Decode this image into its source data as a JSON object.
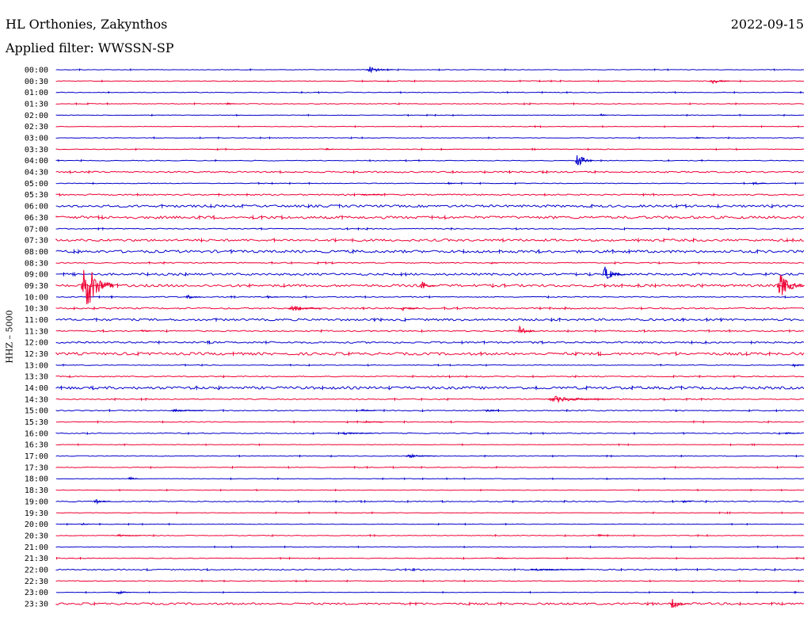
{
  "header": {
    "station": "HL Orthonies, Zakynthos",
    "date": "2022-09-15",
    "filter_prefix": "Applied filter: ",
    "filter": "WWSSN-SP"
  },
  "channel_label": "HHZ – 5000",
  "chart_data": {
    "type": "line",
    "title": "HL Orthonies, Zakynthos",
    "subtitle": "Applied filter: WWSSN-SP",
    "ylabel": "HHZ – 5000",
    "x_range_minutes": [
      0,
      30
    ],
    "rows": [
      "00:00",
      "00:30",
      "01:00",
      "01:30",
      "02:00",
      "02:30",
      "03:00",
      "03:30",
      "04:00",
      "04:30",
      "05:00",
      "05:30",
      "06:00",
      "06:30",
      "07:00",
      "07:30",
      "08:00",
      "08:30",
      "09:00",
      "09:30",
      "10:00",
      "10:30",
      "11:00",
      "11:30",
      "12:00",
      "12:30",
      "13:00",
      "13:30",
      "14:00",
      "14:30",
      "15:00",
      "15:30",
      "16:00",
      "16:30",
      "17:00",
      "17:30",
      "18:00",
      "18:30",
      "19:00",
      "19:30",
      "20:00",
      "20:30",
      "21:00",
      "21:30",
      "22:00",
      "22:30",
      "23:00",
      "23:30"
    ],
    "row_colors": [
      "#0000cc",
      "#ee0033"
    ],
    "noise_level": [
      0.3,
      0.4,
      0.4,
      0.4,
      0.3,
      0.3,
      0.3,
      0.4,
      0.4,
      0.9,
      0.4,
      0.8,
      1.4,
      1.6,
      0.6,
      1.4,
      1.6,
      0.6,
      1.3,
      1.5,
      0.6,
      0.9,
      1.3,
      0.8,
      1.1,
      1.6,
      0.4,
      0.6,
      1.6,
      0.6,
      0.6,
      0.5,
      0.5,
      0.3,
      0.4,
      0.4,
      0.3,
      0.3,
      0.6,
      0.3,
      0.3,
      0.4,
      0.3,
      0.4,
      0.7,
      0.4,
      0.3,
      1.2
    ],
    "events": [
      {
        "row": "00:00",
        "minute": 12.4,
        "amp": 5,
        "dur": 1.1
      },
      {
        "row": "00:30",
        "minute": 26.2,
        "amp": 4,
        "dur": 0.8
      },
      {
        "row": "01:30",
        "minute": 6.8,
        "amp": 1.5,
        "dur": 0.4
      },
      {
        "row": "02:00",
        "minute": 21.8,
        "amp": 2,
        "dur": 0.3
      },
      {
        "row": "03:00",
        "minute": 25.6,
        "amp": 1.5,
        "dur": 0.4
      },
      {
        "row": "03:30",
        "minute": 10.8,
        "amp": 1.5,
        "dur": 0.3
      },
      {
        "row": "04:00",
        "minute": 20.8,
        "amp": 11,
        "dur": 0.7
      },
      {
        "row": "05:00",
        "minute": 15.7,
        "amp": 2,
        "dur": 0.3
      },
      {
        "row": "05:00",
        "minute": 27.9,
        "amp": 2,
        "dur": 0.6
      },
      {
        "row": "05:30",
        "minute": 12.2,
        "amp": 1.5,
        "dur": 0.9
      },
      {
        "row": "08:30",
        "minute": 17.4,
        "amp": 1.5,
        "dur": 0.3
      },
      {
        "row": "09:00",
        "minute": 21.9,
        "amp": 10,
        "dur": 0.9
      },
      {
        "row": "09:30",
        "minute": 1.0,
        "amp": 36,
        "dur": 1.3
      },
      {
        "row": "09:30",
        "minute": 14.6,
        "amp": 6,
        "dur": 0.6
      },
      {
        "row": "09:30",
        "minute": 28.9,
        "amp": 16,
        "dur": 1.1
      },
      {
        "row": "10:00",
        "minute": 5.2,
        "amp": 3,
        "dur": 0.6
      },
      {
        "row": "10:00",
        "minute": 8.4,
        "amp": 2,
        "dur": 0.5
      },
      {
        "row": "10:30",
        "minute": 9.3,
        "amp": 4,
        "dur": 1.3
      },
      {
        "row": "10:30",
        "minute": 13.8,
        "amp": 3,
        "dur": 0.7
      },
      {
        "row": "11:30",
        "minute": 3.4,
        "amp": 2,
        "dur": 0.4
      },
      {
        "row": "11:30",
        "minute": 18.5,
        "amp": 8,
        "dur": 0.7
      },
      {
        "row": "13:00",
        "minute": 29.5,
        "amp": 2.5,
        "dur": 0.6
      },
      {
        "row": "14:30",
        "minute": 19.7,
        "amp": 4,
        "dur": 2.6
      },
      {
        "row": "15:00",
        "minute": 4.6,
        "amp": 2,
        "dur": 1.3
      },
      {
        "row": "15:00",
        "minute": 12.2,
        "amp": 2,
        "dur": 0.6
      },
      {
        "row": "15:00",
        "minute": 17.2,
        "amp": 2,
        "dur": 0.6
      },
      {
        "row": "15:30",
        "minute": 12.3,
        "amp": 1.5,
        "dur": 0.8
      },
      {
        "row": "16:00",
        "minute": 11.4,
        "amp": 1.5,
        "dur": 1.3
      },
      {
        "row": "16:00",
        "minute": 29.2,
        "amp": 1.5,
        "dur": 0.6
      },
      {
        "row": "17:00",
        "minute": 14.0,
        "amp": 2.5,
        "dur": 1.2
      },
      {
        "row": "18:00",
        "minute": 2.9,
        "amp": 3,
        "dur": 0.4
      },
      {
        "row": "19:00",
        "minute": 1.5,
        "amp": 3,
        "dur": 0.7
      },
      {
        "row": "19:00",
        "minute": 25.1,
        "amp": 1.5,
        "dur": 0.4
      },
      {
        "row": "20:00",
        "minute": 1.0,
        "amp": 2,
        "dur": 0.4
      },
      {
        "row": "20:30",
        "minute": 2.4,
        "amp": 1.5,
        "dur": 1.0
      },
      {
        "row": "20:30",
        "minute": 21.7,
        "amp": 2,
        "dur": 0.4
      },
      {
        "row": "21:30",
        "minute": 17.6,
        "amp": 1.5,
        "dur": 0.5
      },
      {
        "row": "22:00",
        "minute": 19.0,
        "amp": 1.5,
        "dur": 2.2
      },
      {
        "row": "23:00",
        "minute": 2.4,
        "amp": 3,
        "dur": 0.6
      },
      {
        "row": "23:30",
        "minute": 24.6,
        "amp": 7,
        "dur": 0.8
      }
    ]
  }
}
